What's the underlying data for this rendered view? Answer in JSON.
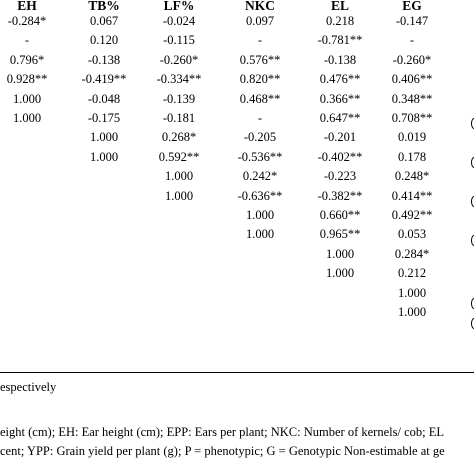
{
  "table": {
    "headers": [
      "EH",
      "TB%",
      "LF%",
      "NKC",
      "EL",
      "EG"
    ],
    "rows": [
      [
        "-0.284*",
        "0.067",
        "-0.024",
        "0.097",
        "0.218",
        "-0.147"
      ],
      [
        "-",
        "0.120",
        "-0.115",
        "-",
        "-0.781**",
        "-"
      ],
      [
        "0.796*",
        "-0.138",
        "-0.260*",
        "0.576**",
        "-0.138",
        "-0.260*"
      ],
      [
        "0.928**",
        "-0.419**",
        "-0.334**",
        "0.820**",
        "0.476**",
        "0.406**"
      ],
      [
        "1.000",
        "-0.048",
        "-0.139",
        "0.468**",
        "0.366**",
        "0.348**"
      ],
      [
        "1.000",
        "-0.175",
        "-0.181",
        "-",
        "0.647**",
        "0.708**"
      ],
      [
        "",
        "1.000",
        "0.268*",
        "-0.205",
        "-0.201",
        "0.019"
      ],
      [
        "",
        "1.000",
        "0.592**",
        "-0.536**",
        "-0.402**",
        "0.178"
      ],
      [
        "",
        "",
        "1.000",
        "0.242*",
        "-0.223",
        "0.248*"
      ],
      [
        "",
        "",
        "1.000",
        "-0.636**",
        "-0.382**",
        "0.414**"
      ],
      [
        "",
        "",
        "",
        "1.000",
        "0.660**",
        "0.492**"
      ],
      [
        "",
        "",
        "",
        "1.000",
        "0.965**",
        "0.053"
      ],
      [
        "",
        "",
        "",
        "",
        "1.000",
        "0.284*"
      ],
      [
        "",
        "",
        "",
        "",
        "1.000",
        "0.212"
      ],
      [
        "",
        "",
        "",
        "",
        "",
        "1.000"
      ],
      [
        "",
        "",
        "",
        "",
        "",
        "1.000"
      ]
    ]
  },
  "footnotes": {
    "line1": "espectively",
    "line2": "eight (cm); EH: Ear height (cm); EPP: Ears per plant; NKC: Number of kernels/ cob; EL",
    "line3": "cent; YPP: Grain yield per plant (g); P = phenotypic; G = Genotypic Non-estimable at ge"
  }
}
